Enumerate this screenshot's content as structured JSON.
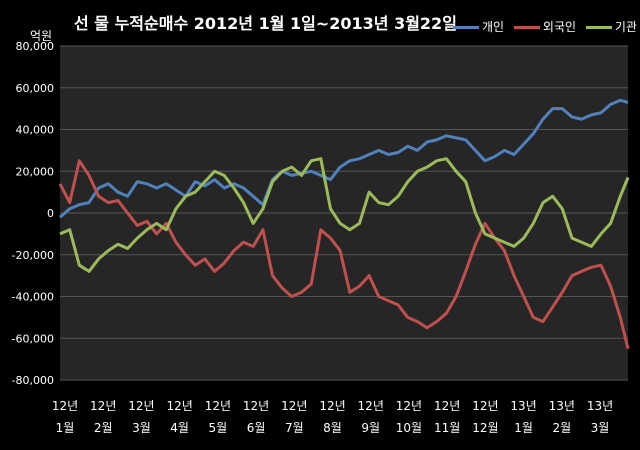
{
  "title": "선 물 누적순매수 2012년 1월 1일~2013년 3월22일",
  "unit_label": "억원",
  "colors": {
    "background": "#000000",
    "plot_bg": "#262626",
    "grid": "#555555",
    "series_colors": [
      "#4f81bd",
      "#c0504d",
      "#9bbb59"
    ]
  },
  "chart_data": {
    "type": "line",
    "title": "선 물 누적순매수 2012년 1월 1일~2013년 3월22일",
    "ylabel": "억원",
    "ylim": [
      -80000,
      80000
    ],
    "yticks": [
      -80000,
      -60000,
      -40000,
      -20000,
      0,
      20000,
      40000,
      60000,
      80000
    ],
    "ytick_labels": [
      "-80,000",
      "-60,000",
      "-40,000",
      "-20,000",
      "0",
      "20,000",
      "40,000",
      "60,000",
      "80,000"
    ],
    "xtick_labels": [
      [
        "12년",
        "1월"
      ],
      [
        "12년",
        "2월"
      ],
      [
        "12년",
        "3월"
      ],
      [
        "12년",
        "4월"
      ],
      [
        "12년",
        "5월"
      ],
      [
        "12년",
        "6월"
      ],
      [
        "12년",
        "7월"
      ],
      [
        "12년",
        "8월"
      ],
      [
        "12년",
        "9월"
      ],
      [
        "12년",
        "10월"
      ],
      [
        "12년",
        "11월"
      ],
      [
        "12년",
        "12월"
      ],
      [
        "13년",
        "1월"
      ],
      [
        "13년",
        "2월"
      ],
      [
        "13년",
        "3월"
      ]
    ],
    "grid": true,
    "legend_position": "top-right",
    "x": [
      0,
      0.25,
      0.5,
      0.75,
      1,
      1.25,
      1.5,
      1.75,
      2,
      2.25,
      2.5,
      2.75,
      3,
      3.25,
      3.5,
      3.75,
      4,
      4.25,
      4.5,
      4.75,
      5,
      5.25,
      5.5,
      5.75,
      6,
      6.25,
      6.5,
      6.75,
      7,
      7.25,
      7.5,
      7.75,
      8,
      8.25,
      8.5,
      8.75,
      9,
      9.25,
      9.5,
      9.75,
      10,
      10.25,
      10.5,
      10.75,
      11,
      11.25,
      11.5,
      11.75,
      12,
      12.25,
      12.5,
      12.75,
      13,
      13.25,
      13.5,
      13.75,
      14,
      14.25,
      14.5,
      14.7
    ],
    "series": [
      {
        "name": "개인",
        "values": [
          -2000,
          2000,
          4000,
          5000,
          12000,
          14000,
          10000,
          8000,
          15000,
          14000,
          12000,
          14000,
          11000,
          8000,
          15000,
          13000,
          16000,
          12000,
          14000,
          12000,
          8000,
          4000,
          16000,
          20000,
          18000,
          19000,
          20000,
          18000,
          16000,
          22000,
          25000,
          26000,
          28000,
          30000,
          28000,
          29000,
          32000,
          30000,
          34000,
          35000,
          37000,
          36000,
          35000,
          30000,
          25000,
          27000,
          30000,
          28000,
          33000,
          38000,
          45000,
          50000,
          50000,
          46000,
          45000,
          47000,
          48000,
          52000,
          54000,
          53000
        ]
      },
      {
        "name": "외국인",
        "values": [
          14000,
          5000,
          25000,
          18000,
          8000,
          5000,
          6000,
          0,
          -6000,
          -4000,
          -10000,
          -5000,
          -14000,
          -20000,
          -25000,
          -22000,
          -28000,
          -24000,
          -18000,
          -14000,
          -16000,
          -8000,
          -30000,
          -36000,
          -40000,
          -38000,
          -34000,
          -8000,
          -12000,
          -18000,
          -38000,
          -35000,
          -30000,
          -40000,
          -42000,
          -44000,
          -50000,
          -52000,
          -55000,
          -52000,
          -48000,
          -40000,
          -28000,
          -15000,
          -5000,
          -12000,
          -18000,
          -30000,
          -40000,
          -50000,
          -52000,
          -45000,
          -38000,
          -30000,
          -28000,
          -26000,
          -25000,
          -35000,
          -50000,
          -65000
        ]
      },
      {
        "name": "기관",
        "values": [
          -10000,
          -8000,
          -25000,
          -28000,
          -22000,
          -18000,
          -15000,
          -17000,
          -12000,
          -8000,
          -5000,
          -8000,
          2000,
          8000,
          10000,
          15000,
          20000,
          18000,
          12000,
          5000,
          -5000,
          2000,
          15000,
          20000,
          22000,
          18000,
          25000,
          26000,
          2000,
          -5000,
          -8000,
          -5000,
          10000,
          5000,
          4000,
          8000,
          15000,
          20000,
          22000,
          25000,
          26000,
          20000,
          15000,
          0,
          -10000,
          -12000,
          -14000,
          -16000,
          -12000,
          -5000,
          5000,
          8000,
          2000,
          -12000,
          -14000,
          -16000,
          -10000,
          -5000,
          8000,
          17000
        ]
      }
    ]
  }
}
